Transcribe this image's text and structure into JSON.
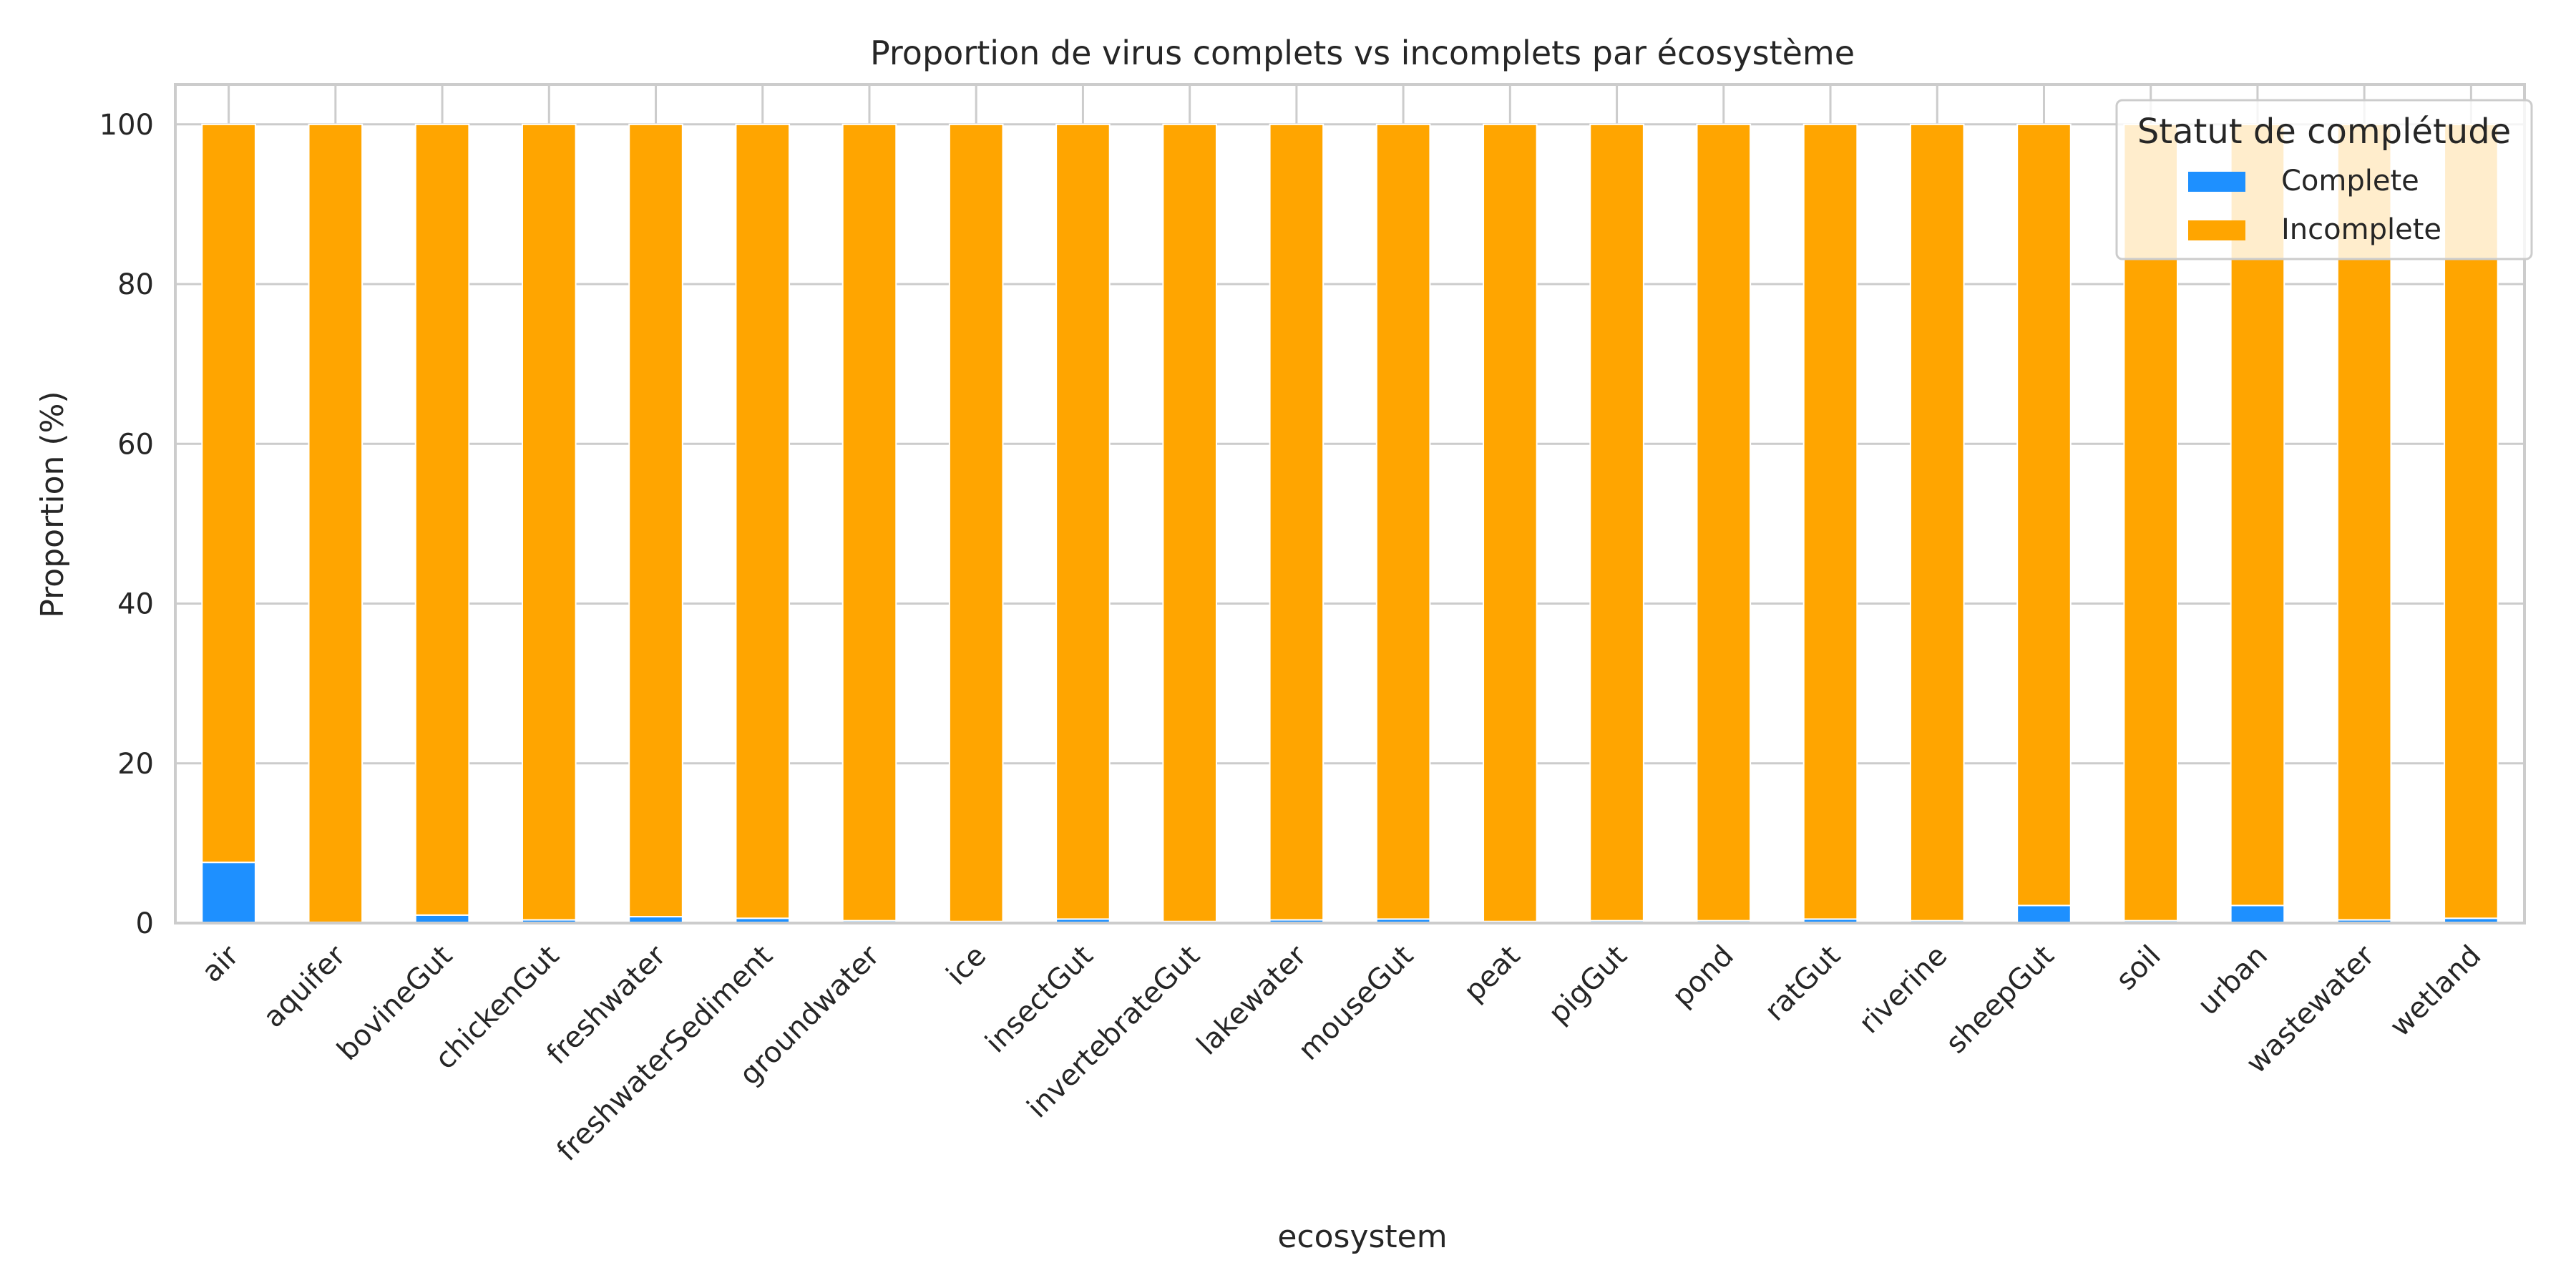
{
  "chart_data": {
    "type": "bar",
    "stacked": true,
    "title": "Proportion de virus complets vs incomplets par écosystème",
    "xlabel": "ecosystem",
    "ylabel": "Proportion (%)",
    "ylim": [
      0,
      105
    ],
    "yticks": [
      0,
      20,
      40,
      60,
      80,
      100
    ],
    "grid": true,
    "categories": [
      "air",
      "aquifer",
      "bovineGut",
      "chickenGut",
      "freshwater",
      "freshwaterSediment",
      "groundwater",
      "ice",
      "insectGut",
      "invertebrateGut",
      "lakewater",
      "mouseGut",
      "peat",
      "pigGut",
      "pond",
      "ratGut",
      "riverine",
      "sheepGut",
      "soil",
      "urban",
      "wastewater",
      "wetland"
    ],
    "legend": {
      "title": "Statut de complétude",
      "placement": "top-right"
    },
    "series": [
      {
        "name": "Complete",
        "color": "#1E90FF",
        "values": [
          7.6,
          0.1,
          1.0,
          0.4,
          0.8,
          0.6,
          0.3,
          0.2,
          0.5,
          0.2,
          0.4,
          0.5,
          0.2,
          0.3,
          0.3,
          0.5,
          0.3,
          2.2,
          0.3,
          2.2,
          0.4,
          0.6
        ]
      },
      {
        "name": "Incomplete",
        "color": "#FFA500",
        "values": [
          92.4,
          99.9,
          99.0,
          99.6,
          99.2,
          99.4,
          99.7,
          99.8,
          99.5,
          99.8,
          99.6,
          99.5,
          99.8,
          99.7,
          99.7,
          99.5,
          99.7,
          97.8,
          99.7,
          97.8,
          99.6,
          99.4
        ]
      }
    ]
  }
}
